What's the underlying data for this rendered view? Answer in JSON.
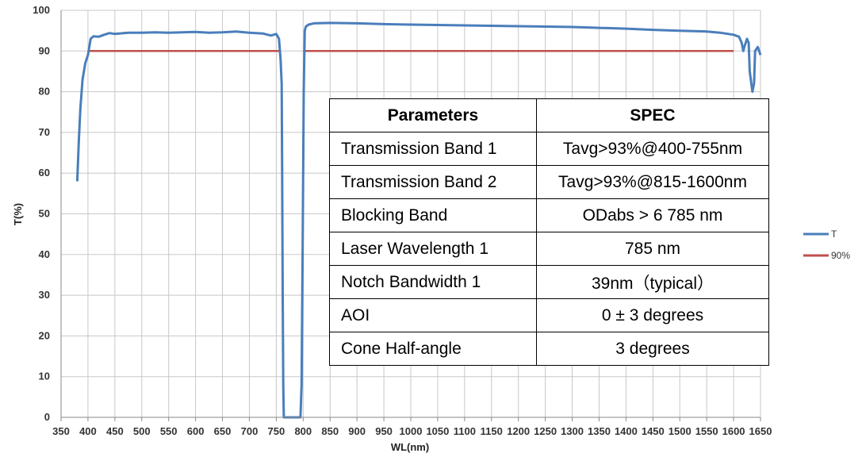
{
  "chart_data": {
    "type": "line",
    "xlabel": "WL(nm)",
    "ylabel": "T(%)",
    "xlim": [
      350,
      1650
    ],
    "ylim": [
      0,
      100
    ],
    "x_ticks": [
      350,
      400,
      450,
      500,
      550,
      600,
      650,
      700,
      750,
      800,
      850,
      900,
      950,
      1000,
      1050,
      1100,
      1150,
      1200,
      1250,
      1300,
      1350,
      1400,
      1450,
      1500,
      1550,
      1600,
      1650
    ],
    "y_ticks": [
      0,
      10,
      20,
      30,
      40,
      50,
      60,
      70,
      80,
      90,
      100
    ],
    "grid": true,
    "legend_position": "right",
    "series": [
      {
        "name": "T",
        "color": "#4a7ebb",
        "x": [
          380,
          383,
          386,
          390,
          395,
          400,
          405,
          410,
          420,
          430,
          440,
          450,
          475,
          500,
          525,
          550,
          575,
          600,
          625,
          650,
          675,
          700,
          725,
          740,
          750,
          755,
          758,
          760,
          761,
          762,
          763,
          764,
          765,
          770,
          780,
          790,
          795,
          797,
          799,
          801,
          803,
          805,
          810,
          820,
          850,
          900,
          950,
          1000,
          1050,
          1100,
          1150,
          1200,
          1250,
          1300,
          1350,
          1400,
          1450,
          1500,
          1550,
          1575,
          1600,
          1610,
          1615,
          1618,
          1620,
          1625,
          1628,
          1630,
          1635,
          1638,
          1640,
          1645,
          1650
        ],
        "y": [
          58,
          68,
          76,
          83,
          87,
          89,
          93,
          93.6,
          93.5,
          94,
          94.4,
          94.2,
          94.5,
          94.5,
          94.6,
          94.5,
          94.6,
          94.7,
          94.5,
          94.6,
          94.8,
          94.5,
          94.3,
          93.8,
          94.2,
          93,
          88,
          82,
          60,
          30,
          8,
          0,
          0,
          0,
          0,
          0,
          0,
          8,
          40,
          80,
          95,
          96,
          96.5,
          96.8,
          96.9,
          96.8,
          96.6,
          96.5,
          96.4,
          96.3,
          96.2,
          96.1,
          96,
          95.9,
          95.7,
          95.5,
          95.2,
          95,
          94.8,
          94.5,
          94,
          93.5,
          92,
          90,
          91,
          93,
          92,
          85,
          80,
          82,
          90,
          91,
          89
        ]
      },
      {
        "name": "90%",
        "color": "#c0504d",
        "x": [
          400,
          755,
          null,
          800,
          1600
        ],
        "y": [
          90,
          90,
          null,
          90,
          90
        ]
      }
    ]
  },
  "table": {
    "headers": [
      "Parameters",
      "SPEC"
    ],
    "rows": [
      {
        "param": "Transmission Band 1",
        "spec": "Tavg>93%@400-755nm"
      },
      {
        "param": "Transmission Band 2",
        "spec": "Tavg>93%@815-1600nm"
      },
      {
        "param": "Blocking Band",
        "spec": "ODabs > 6 785 nm"
      },
      {
        "param": "Laser Wavelength 1",
        "spec": "785 nm"
      },
      {
        "param": "Notch Bandwidth 1",
        "spec": "39nm（typical）"
      },
      {
        "param": "AOI",
        "spec": "0 ± 3 degrees"
      },
      {
        "param": "Cone Half-angle",
        "spec": "3 degrees"
      }
    ]
  }
}
